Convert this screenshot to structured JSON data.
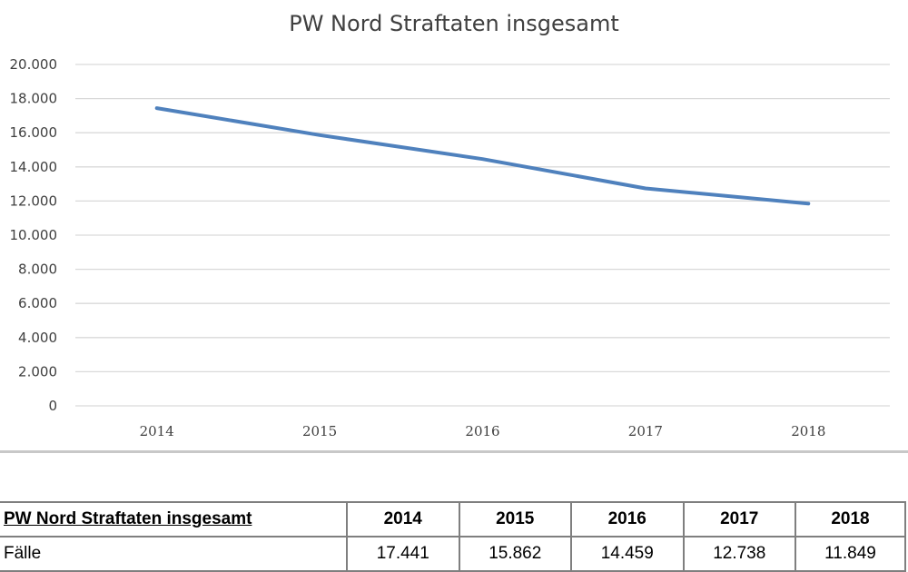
{
  "chart_data": {
    "type": "line",
    "title": "PW Nord Straftaten insgesamt",
    "categories": [
      "2014",
      "2015",
      "2016",
      "2017",
      "2018"
    ],
    "series": [
      {
        "name": "",
        "values": [
          17441,
          15862,
          14459,
          12738,
          11849
        ],
        "color": "#4f81bd"
      }
    ],
    "y_ticks": [
      "0",
      "2.000",
      "4.000",
      "6.000",
      "8.000",
      "10.000",
      "12.000",
      "14.000",
      "16.000",
      "18.000",
      "20.000"
    ],
    "ylim": [
      0,
      20000
    ],
    "xlabel": "",
    "ylabel": "",
    "grid": true,
    "legend": "none"
  },
  "table": {
    "header_label": "PW Nord Straftaten insgesamt",
    "years": [
      "2014",
      "2015",
      "2016",
      "2017",
      "2018"
    ],
    "row_label": "Fälle",
    "values": [
      "17.441",
      "15.862",
      "14.459",
      "12.738",
      "11.849"
    ]
  }
}
